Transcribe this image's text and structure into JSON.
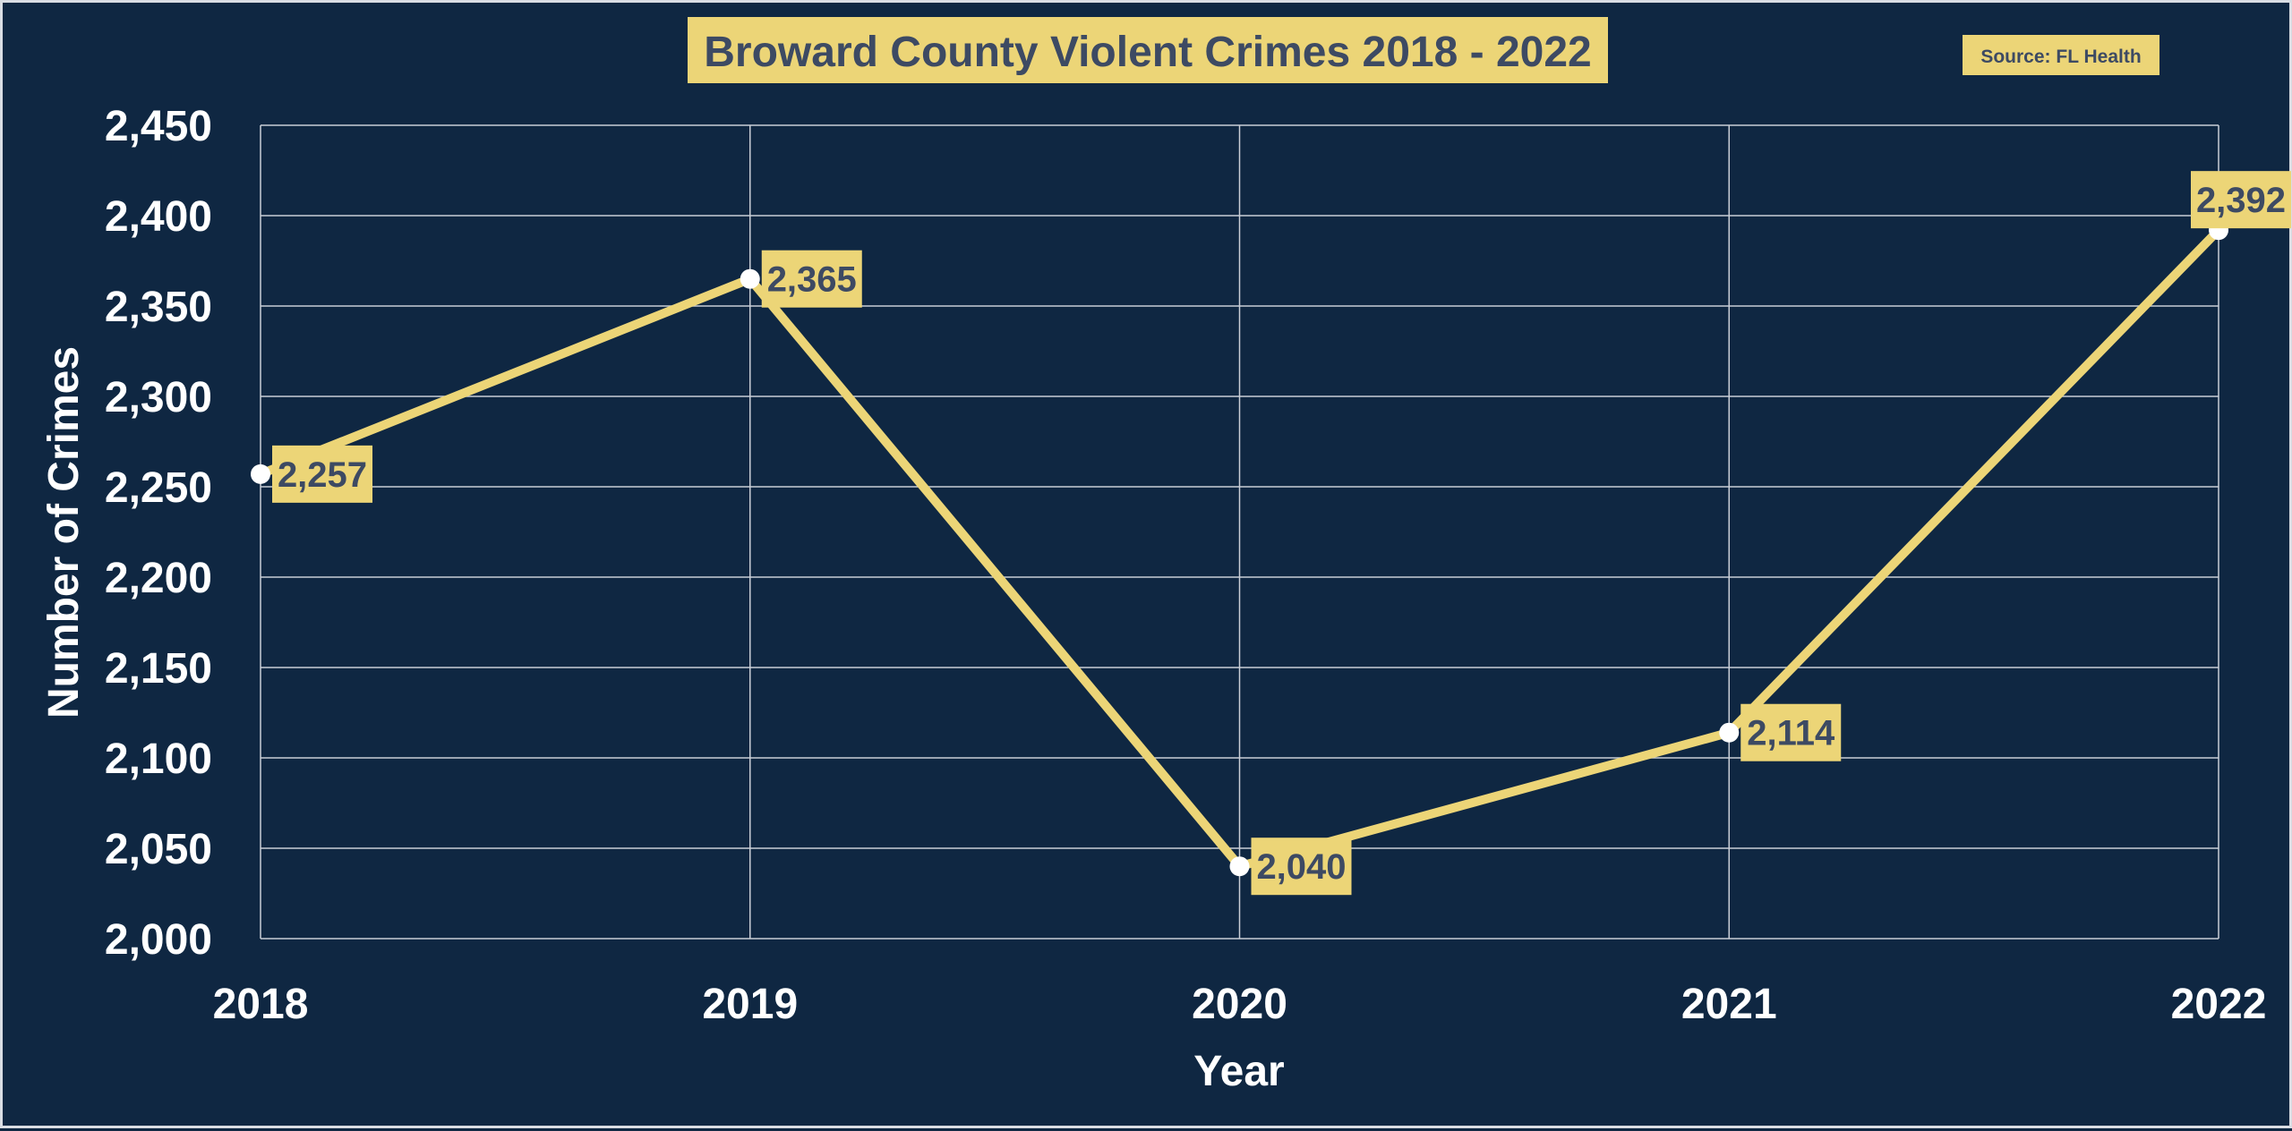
{
  "chart_data": {
    "type": "line",
    "title": "Broward County Violent Crimes 2018 - 2022",
    "source_note": "Source: FL Health",
    "xlabel": "Year",
    "ylabel": "Number of Crimes",
    "categories": [
      "2018",
      "2019",
      "2020",
      "2021",
      "2022"
    ],
    "series": [
      {
        "values": [
          2257,
          2365,
          2040,
          2114,
          2392
        ],
        "data_labels": [
          "2,257",
          "2,365",
          "2,040",
          "2,114",
          "2,392"
        ]
      }
    ],
    "ylim": [
      2000,
      2450
    ],
    "yticks": [
      2000,
      2050,
      2100,
      2150,
      2200,
      2250,
      2300,
      2350,
      2400,
      2450
    ],
    "ytick_labels": [
      "2,000",
      "2,050",
      "2,100",
      "2,150",
      "2,200",
      "2,250",
      "2,300",
      "2,350",
      "2,400",
      "2,450"
    ],
    "grid": true,
    "legend": "none",
    "colors": {
      "background": "#0f2742",
      "line": "#ecd577",
      "label_box": "#ecd577",
      "label_text": "#3d4a63",
      "marker": "#ffffff",
      "grid": "#c9ced6",
      "axis_text": "#ffffff"
    }
  }
}
